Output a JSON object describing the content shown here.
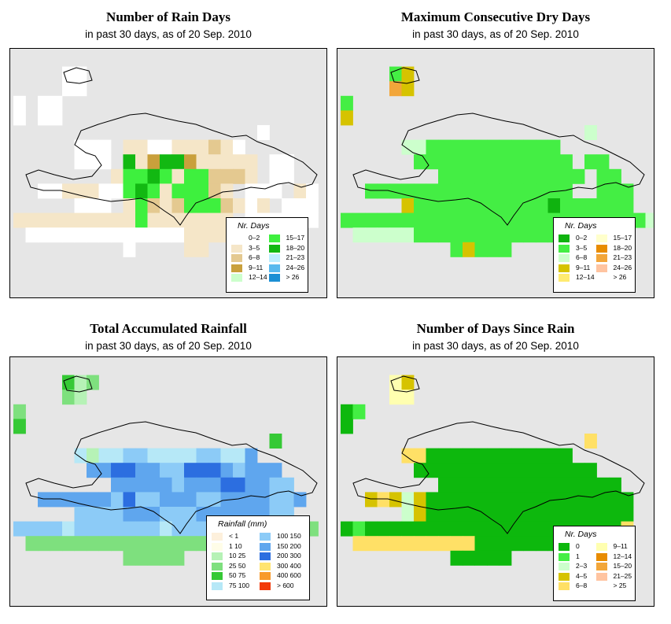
{
  "panels": [
    {
      "id": "rain-days",
      "title": "Number of Rain Days",
      "subtitle": "in past 30 days, as of  20 Sep. 2010",
      "legend": {
        "title": "Nr. Days",
        "items": [
          {
            "label": "0–2",
            "color": "#ffffff"
          },
          {
            "label": "3–5",
            "color": "#f5e6c8"
          },
          {
            "label": "6–8",
            "color": "#e4c990"
          },
          {
            "label": "9–11",
            "color": "#c9a03c"
          },
          {
            "label": "12–14",
            "color": "#ccffcc"
          },
          {
            "label": "15–17",
            "color": "#3ef03e"
          },
          {
            "label": "18–20",
            "color": "#12b812"
          },
          {
            "label": "21–23",
            "color": "#bdeeff"
          },
          {
            "label": "24–26",
            "color": "#59b9ee"
          },
          {
            "label": "> 26",
            "color": "#1c8fd4"
          }
        ]
      },
      "grid_rows": [
        "..........................",
        "....aa....................",
        "....aa....................",
        "a.aa......................",
        "a.aa......................",
        "....................a.....",
        ".....aaa.bbaabbbcba.......",
        ".....aaa.gbdggdbbbbb.aa...",
        "........bffgfbffcccb.aa...",
        "..aabbbaafgfbfffcb.aaa.ba.",
        ".....aaa.bfcbcfffcbab.aaa.",
        "bbbbbbbbbbfbbbbbbb.aaaaaa.",
        ".aaaaaaaaaaaaabbbbbbbbb...",
        ".........a....bb..........",
        "..........................",
        ".........................."
      ]
    },
    {
      "id": "dry-days",
      "title": "Maximum Consecutive Dry Days",
      "subtitle": "in past 30 days, as of  20 Sep. 2010",
      "legend": {
        "title": "Nr. Days",
        "items": [
          {
            "label": "0–2",
            "color": "#0fb30f"
          },
          {
            "label": "3–5",
            "color": "#44ee44"
          },
          {
            "label": "6–8",
            "color": "#ccffcc"
          },
          {
            "label": "9–11",
            "color": "#d6c300"
          },
          {
            "label": "12–14",
            "color": "#ffeb70"
          },
          {
            "label": "15–17",
            "color": "#ffffcc"
          },
          {
            "label": "18–20",
            "color": "#e88c00"
          },
          {
            "label": "21–23",
            "color": "#f2a63a"
          },
          {
            "label": "24–26",
            "color": "#ffc4a0"
          },
          {
            "label": "> 26",
            "color": "#ffffff"
          }
        ]
      },
      "grid_rows": [
        "..........................",
        "....bd....................",
        "....hd....................",
        "b.........................",
        "d.........................",
        "....................c.....",
        ".....ccbbbbbbbbbbb........",
        "......bbbbbbbbbbbbb.bb....",
        "........bbbbbbbbbbbb.bb...",
        "..bbbbbbbbbbbbbbbbb..bbb..",
        ".....dbbbbbbbbbbbabbbbbb..",
        "bbbbbbbbbbbbbbbbbbbbbbbbbc",
        ".cccccbbbbbbbbbbbbbbbbb...",
        ".........bdbbb............",
        "..........................",
        ".........................."
      ]
    },
    {
      "id": "total-rainfall",
      "title": "Total Accumulated Rainfall",
      "subtitle": "in past 30 days, as of  20 Sep. 2010",
      "legend": {
        "title": "Rainfall (mm)",
        "items": [
          {
            "label": "< 1",
            "color": "#fdf0dc"
          },
          {
            "label": "1   10",
            "color": "#fffde8"
          },
          {
            "label": "10   25",
            "color": "#b6f2b6"
          },
          {
            "label": "25   50",
            "color": "#7ee07e"
          },
          {
            "label": "50   75",
            "color": "#35c935"
          },
          {
            "label": "75  100",
            "color": "#b6e8f7"
          },
          {
            "label": "100  150",
            "color": "#8ccbf7"
          },
          {
            "label": "150  200",
            "color": "#5fa6ee"
          },
          {
            "label": "200  300",
            "color": "#2c6ee0"
          },
          {
            "label": "300  400",
            "color": "#ffe470"
          },
          {
            "label": "400  600",
            "color": "#f89a2a"
          },
          {
            "label": "> 600",
            "color": "#f23a0a"
          }
        ]
      },
      "grid_rows": [
        "..........................",
        "....ecd...................",
        "....dc....................",
        "d.........................",
        "e.........................",
        ".....................e....",
        ".....fcffggffffggffh......",
        "......hhiihhggiiihghhh....",
        "........hhhhhghhhiihhgg...",
        "..hhhhhhgigghhhgghhhhggh..",
        ".....gggghhhggghhhhhhgg...",
        "ggggfgggggggfgggggffggggd.",
        ".ddddddddddddddddffffff...",
        ".........ddddd............",
        "..........................",
        ".........................."
      ]
    },
    {
      "id": "days-since-rain",
      "title": "Number of Days Since Rain",
      "subtitle": "in past 30 days, as of  20 Sep. 2010",
      "legend": {
        "title": "Nr. Days",
        "items": [
          {
            "label": "0",
            "color": "#0db80d"
          },
          {
            "label": "1",
            "color": "#44ee44"
          },
          {
            "label": "2–3",
            "color": "#ccffcc"
          },
          {
            "label": "4–5",
            "color": "#d6c300"
          },
          {
            "label": "6–8",
            "color": "#ffe066"
          },
          {
            "label": "9–11",
            "color": "#ffffb0"
          },
          {
            "label": "12–14",
            "color": "#e88c00"
          },
          {
            "label": "15–20",
            "color": "#f2a63a"
          },
          {
            "label": "21–25",
            "color": "#ffc4a0"
          },
          {
            "label": "> 25",
            "color": "#ffffff"
          }
        ]
      },
      "grid_rows": [
        "..........................",
        "....fd....................",
        "....ff....................",
        "ab........................",
        "a.........................",
        "....................e.....",
        ".....eeaaaaaaaaaaaa.......",
        "......aaaaaaaaaaaaaaa.....",
        "........aaaaaaaaaaaaaaa...",
        "..dedcdaaaaaaaaaaaaaaaaa..",
        ".....cdaaaaaaaaaaaaaaaaa..",
        "abaaaaaaaaaaaaaaaaaaaaae..",
        ".eeeeeeeeeeaaaaaaaaaaaa...",
        ".........aaaaa............",
        "..........................",
        ".........................."
      ]
    }
  ]
}
